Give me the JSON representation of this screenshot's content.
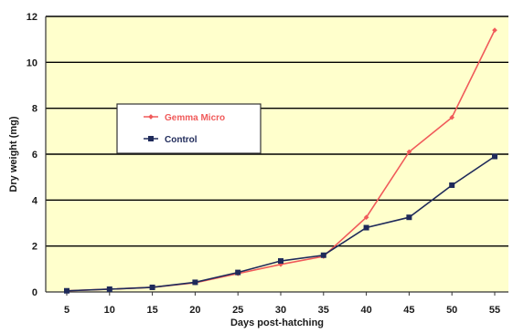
{
  "chart_data": {
    "type": "line",
    "xlabel": "Days post-hatching",
    "ylabel": "Dry weight (mg)",
    "x": [
      5,
      10,
      15,
      20,
      25,
      30,
      35,
      40,
      45,
      50,
      55
    ],
    "xlim": [
      5,
      55
    ],
    "ylim": [
      0,
      12
    ],
    "yticks": [
      0,
      2,
      4,
      6,
      8,
      10,
      12
    ],
    "grid": true,
    "legend_position": "center-left",
    "plot_background": "#ffffcc",
    "series": [
      {
        "name": "Gemma Micro",
        "color": "#f05a5a",
        "marker": "diamond",
        "values": [
          0.05,
          0.12,
          0.2,
          0.4,
          0.8,
          1.2,
          1.55,
          3.25,
          6.1,
          7.6,
          11.4
        ]
      },
      {
        "name": "Control",
        "color": "#1f2a5a",
        "marker": "square",
        "values": [
          0.05,
          0.12,
          0.2,
          0.42,
          0.85,
          1.35,
          1.6,
          2.8,
          3.25,
          4.65,
          5.9
        ]
      }
    ]
  }
}
